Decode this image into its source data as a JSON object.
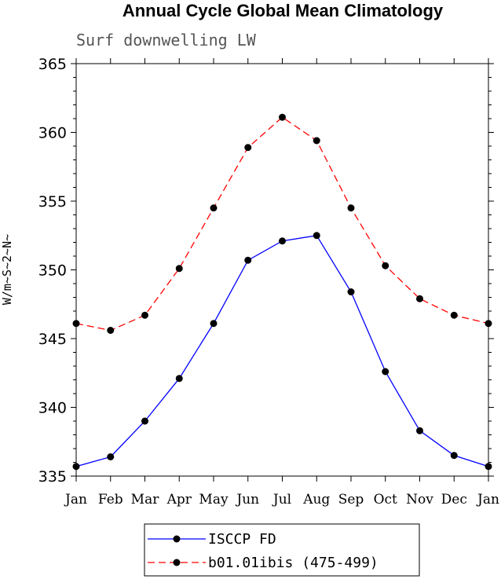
{
  "chart_data": {
    "type": "line",
    "title": "Annual Cycle Global Mean Climatology",
    "subtitle": "Surf downwelling LW",
    "xlabel": "",
    "ylabel": "W/m~S~2~N~",
    "categories": [
      "Jan",
      "Feb",
      "Mar",
      "Apr",
      "May",
      "Jun",
      "Jul",
      "Aug",
      "Sep",
      "Oct",
      "Nov",
      "Dec",
      "Jan"
    ],
    "ylim": [
      335,
      365
    ],
    "yticks": [
      335,
      340,
      345,
      350,
      355,
      360,
      365
    ],
    "legend_position": "bottom",
    "grid": false,
    "series": [
      {
        "name": "ISCCP FD",
        "color": "#0000ff",
        "line_style": "solid",
        "values": [
          335.7,
          336.4,
          339.0,
          342.1,
          346.1,
          350.7,
          352.1,
          352.5,
          348.4,
          342.6,
          338.3,
          336.5,
          335.7
        ]
      },
      {
        "name": "b01.01ibis (475-499)",
        "color": "#ff0000",
        "line_style": "dashed",
        "values": [
          346.1,
          345.6,
          346.7,
          350.1,
          354.5,
          358.9,
          361.1,
          359.4,
          354.5,
          350.3,
          347.9,
          346.7,
          346.1
        ]
      }
    ]
  }
}
